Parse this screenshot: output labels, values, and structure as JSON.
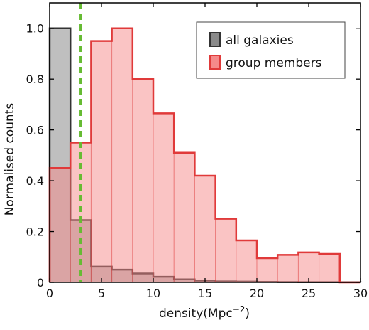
{
  "chart_data": {
    "type": "bar",
    "subtype": "step-histogram",
    "xlabel": "density(Mpc",
    "xlabel_sup": "−2",
    "xlabel_suffix": ")",
    "ylabel": "Normalised counts",
    "xlim": [
      0,
      30
    ],
    "ylim": [
      0,
      1.1
    ],
    "x_ticks": [
      0,
      5,
      10,
      15,
      20,
      25,
      30
    ],
    "y_ticks": [
      0,
      0.2,
      0.4,
      0.6,
      0.8,
      1.0
    ],
    "x_tick_labels": [
      "0",
      "5",
      "10",
      "15",
      "20",
      "25",
      "30"
    ],
    "y_tick_labels": [
      "0",
      "0.2",
      "0.4",
      "0.6",
      "0.8",
      "1.0"
    ],
    "bin_edges": [
      0,
      2,
      4,
      6,
      8,
      10,
      12,
      14,
      16,
      18,
      20,
      22,
      24,
      26,
      28,
      30
    ],
    "series": [
      {
        "name": "all galaxies",
        "fill": "#8a8a8a",
        "stroke": "#333333",
        "values": [
          1.0,
          0.245,
          0.062,
          0.05,
          0.035,
          0.022,
          0.012,
          0.007,
          0.004,
          0.003,
          0.002,
          0.0015,
          0.001,
          0.001,
          0.0008
        ]
      },
      {
        "name": "group members",
        "fill": "#f58a8a",
        "stroke": "#e03a3a",
        "values": [
          0.45,
          0.55,
          0.95,
          1.0,
          0.8,
          0.665,
          0.51,
          0.42,
          0.25,
          0.165,
          0.095,
          0.108,
          0.118,
          0.112,
          0.0
        ]
      }
    ],
    "vline": {
      "x": 3,
      "color": "#66bb33"
    },
    "legend": {
      "position": "top-right",
      "entries": [
        "all galaxies",
        "group members"
      ]
    }
  }
}
